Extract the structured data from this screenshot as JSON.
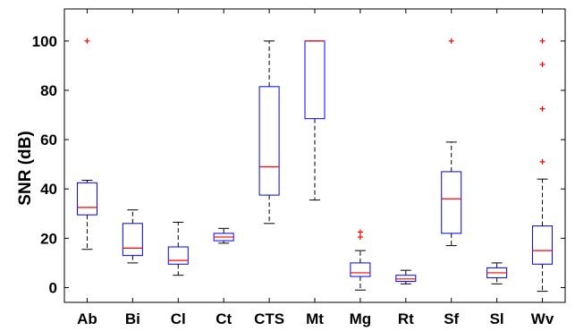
{
  "chart_data": {
    "type": "box",
    "title": "",
    "xlabel": "",
    "ylabel": "SNR (dB)",
    "ylim": [
      -6,
      113
    ],
    "yticks": [
      0,
      20,
      40,
      60,
      80,
      100
    ],
    "grid": false,
    "colors": {
      "box": "#0000ff",
      "median": "#ff0000",
      "whisker": "#000000",
      "outlier": "#ff0000"
    },
    "categories": [
      "Ab",
      "Bi",
      "Cl",
      "Ct",
      "CTS",
      "Mt",
      "Mg",
      "Rt",
      "Sf",
      "Sl",
      "Wv"
    ],
    "boxes": [
      {
        "name": "Ab",
        "whisker_low": 15.5,
        "q1": 29.5,
        "median": 32.5,
        "q3": 42.5,
        "whisker_high": 43.5,
        "outliers": [
          100
        ]
      },
      {
        "name": "Bi",
        "whisker_low": 10,
        "q1": 13,
        "median": 16,
        "q3": 26,
        "whisker_high": 31.5,
        "outliers": []
      },
      {
        "name": "Cl",
        "whisker_low": 5,
        "q1": 9.5,
        "median": 11,
        "q3": 16.5,
        "whisker_high": 26.5,
        "outliers": []
      },
      {
        "name": "Ct",
        "whisker_low": 18,
        "q1": 19,
        "median": 20.5,
        "q3": 22,
        "whisker_high": 24,
        "outliers": []
      },
      {
        "name": "CTS",
        "whisker_low": 26,
        "q1": 37.5,
        "median": 49,
        "q3": 81.5,
        "whisker_high": 100,
        "outliers": []
      },
      {
        "name": "Mt",
        "whisker_low": 35.5,
        "q1": 68.5,
        "median": 100,
        "q3": 100,
        "whisker_high": 100,
        "outliers": []
      },
      {
        "name": "Mg",
        "whisker_low": -1,
        "q1": 4.5,
        "median": 6,
        "q3": 10,
        "whisker_high": 15,
        "outliers": [
          20.5,
          22.5
        ]
      },
      {
        "name": "Rt",
        "whisker_low": 1.5,
        "q1": 2.5,
        "median": 3.5,
        "q3": 5,
        "whisker_high": 7,
        "outliers": []
      },
      {
        "name": "Sf",
        "whisker_low": 17,
        "q1": 22,
        "median": 36,
        "q3": 47,
        "whisker_high": 59,
        "outliers": [
          100
        ]
      },
      {
        "name": "Sl",
        "whisker_low": 1.5,
        "q1": 4,
        "median": 6,
        "q3": 8,
        "whisker_high": 10,
        "outliers": []
      },
      {
        "name": "Wv",
        "whisker_low": -1.5,
        "q1": 9.5,
        "median": 15,
        "q3": 25,
        "whisker_high": 44,
        "outliers": [
          51,
          72.5,
          90.5,
          100
        ]
      }
    ]
  }
}
